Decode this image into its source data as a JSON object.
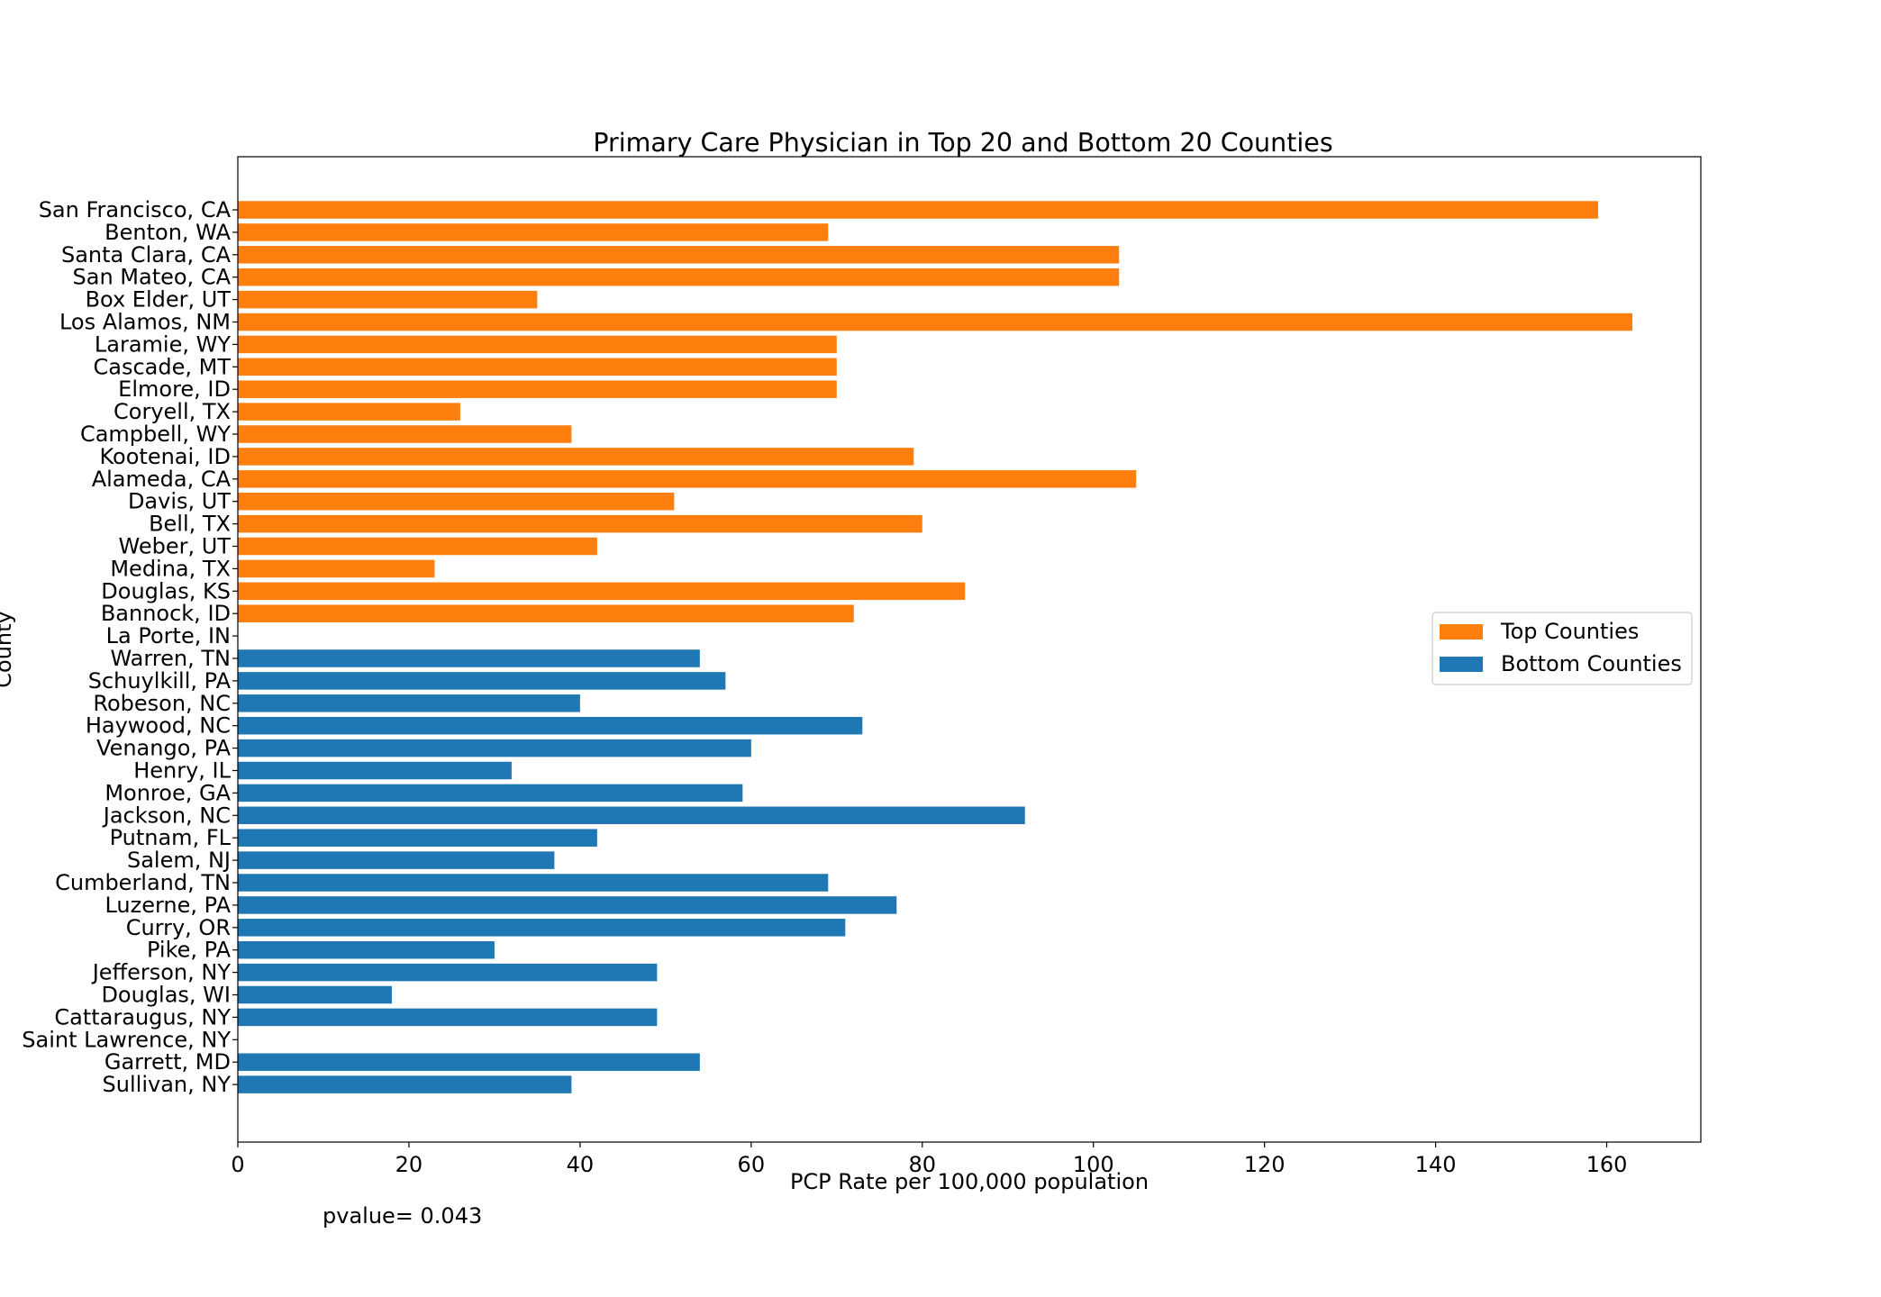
{
  "chart_data": {
    "type": "bar",
    "orientation": "horizontal",
    "title": "Primary Care Physician in Top 20 and Bottom 20 Counties",
    "xlabel": "PCP Rate per 100,000 population",
    "ylabel": "County",
    "xlim": [
      0,
      171
    ],
    "xticks": [
      0,
      20,
      40,
      60,
      80,
      100,
      120,
      140,
      160
    ],
    "grid": false,
    "legend_position": "center-right",
    "annotation": "pvalue= 0.043",
    "categories": [
      "San Francisco, CA",
      "Benton, WA",
      "Santa Clara, CA",
      "San Mateo, CA",
      "Box Elder, UT",
      "Los Alamos, NM",
      "Laramie, WY",
      "Cascade, MT",
      "Elmore, ID",
      "Coryell, TX",
      "Campbell, WY",
      "Kootenai, ID",
      "Alameda, CA",
      "Davis, UT",
      "Bell, TX",
      "Weber, UT",
      "Medina, TX",
      "Douglas, KS",
      "Bannock, ID",
      "La Porte, IN",
      "Warren, TN",
      "Schuylkill, PA",
      "Robeson, NC",
      "Haywood, NC",
      "Venango, PA",
      "Henry, IL",
      "Monroe, GA",
      "Jackson, NC",
      "Putnam, FL",
      "Salem, NJ",
      "Cumberland, TN",
      "Luzerne, PA",
      "Curry, OR",
      "Pike, PA",
      "Jefferson, NY",
      "Douglas, WI",
      "Cattaraugus, NY",
      "Saint Lawrence, NY",
      "Garrett, MD",
      "Sullivan, NY"
    ],
    "series": [
      {
        "name": "Top Counties",
        "color": "#ff7f0e",
        "values": [
          159,
          69,
          103,
          103,
          35,
          163,
          70,
          70,
          70,
          26,
          39,
          79,
          105,
          51,
          80,
          42,
          23,
          85,
          72,
          null,
          null,
          null,
          null,
          null,
          null,
          null,
          null,
          null,
          null,
          null,
          null,
          null,
          null,
          null,
          null,
          null,
          null,
          null,
          null,
          null
        ]
      },
      {
        "name": "Bottom Counties",
        "color": "#1f77b4",
        "values": [
          null,
          null,
          null,
          null,
          null,
          null,
          null,
          null,
          null,
          null,
          null,
          null,
          null,
          null,
          null,
          null,
          null,
          null,
          null,
          null,
          54,
          57,
          40,
          73,
          60,
          32,
          59,
          92,
          42,
          37,
          69,
          77,
          71,
          30,
          49,
          18,
          49,
          null,
          54,
          39
        ]
      }
    ]
  }
}
